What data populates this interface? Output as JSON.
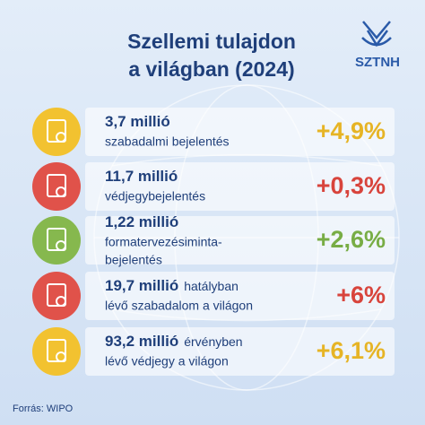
{
  "header": {
    "title_lines": [
      "Szellemi tulajdon",
      "a világban (2024)"
    ],
    "logo": "SZTNH"
  },
  "rows": [
    {
      "amount": "3,7 millió",
      "description": [
        "szabadalmi bejelentés"
      ],
      "change": "+4,9%"
    },
    {
      "amount": "11,7 millió",
      "description": [
        "védjegybejelentés"
      ],
      "change": "+0,3%"
    },
    {
      "amount": "1,22 millió",
      "description": [
        "formatervezésiminta-",
        "bejelentés"
      ],
      "change": "+2,6%"
    },
    {
      "amount": "19,7 millió",
      "amount_suffix": "hatályban",
      "description": [
        "lévő szabadalom a világon"
      ],
      "change": "+6%"
    },
    {
      "amount": "93,2 millió",
      "amount_suffix": "érvényben",
      "description": [
        "lévő védjegy a világon"
      ],
      "change": "+6,1%"
    }
  ],
  "footer": {
    "source": "Forrás: WIPO"
  }
}
